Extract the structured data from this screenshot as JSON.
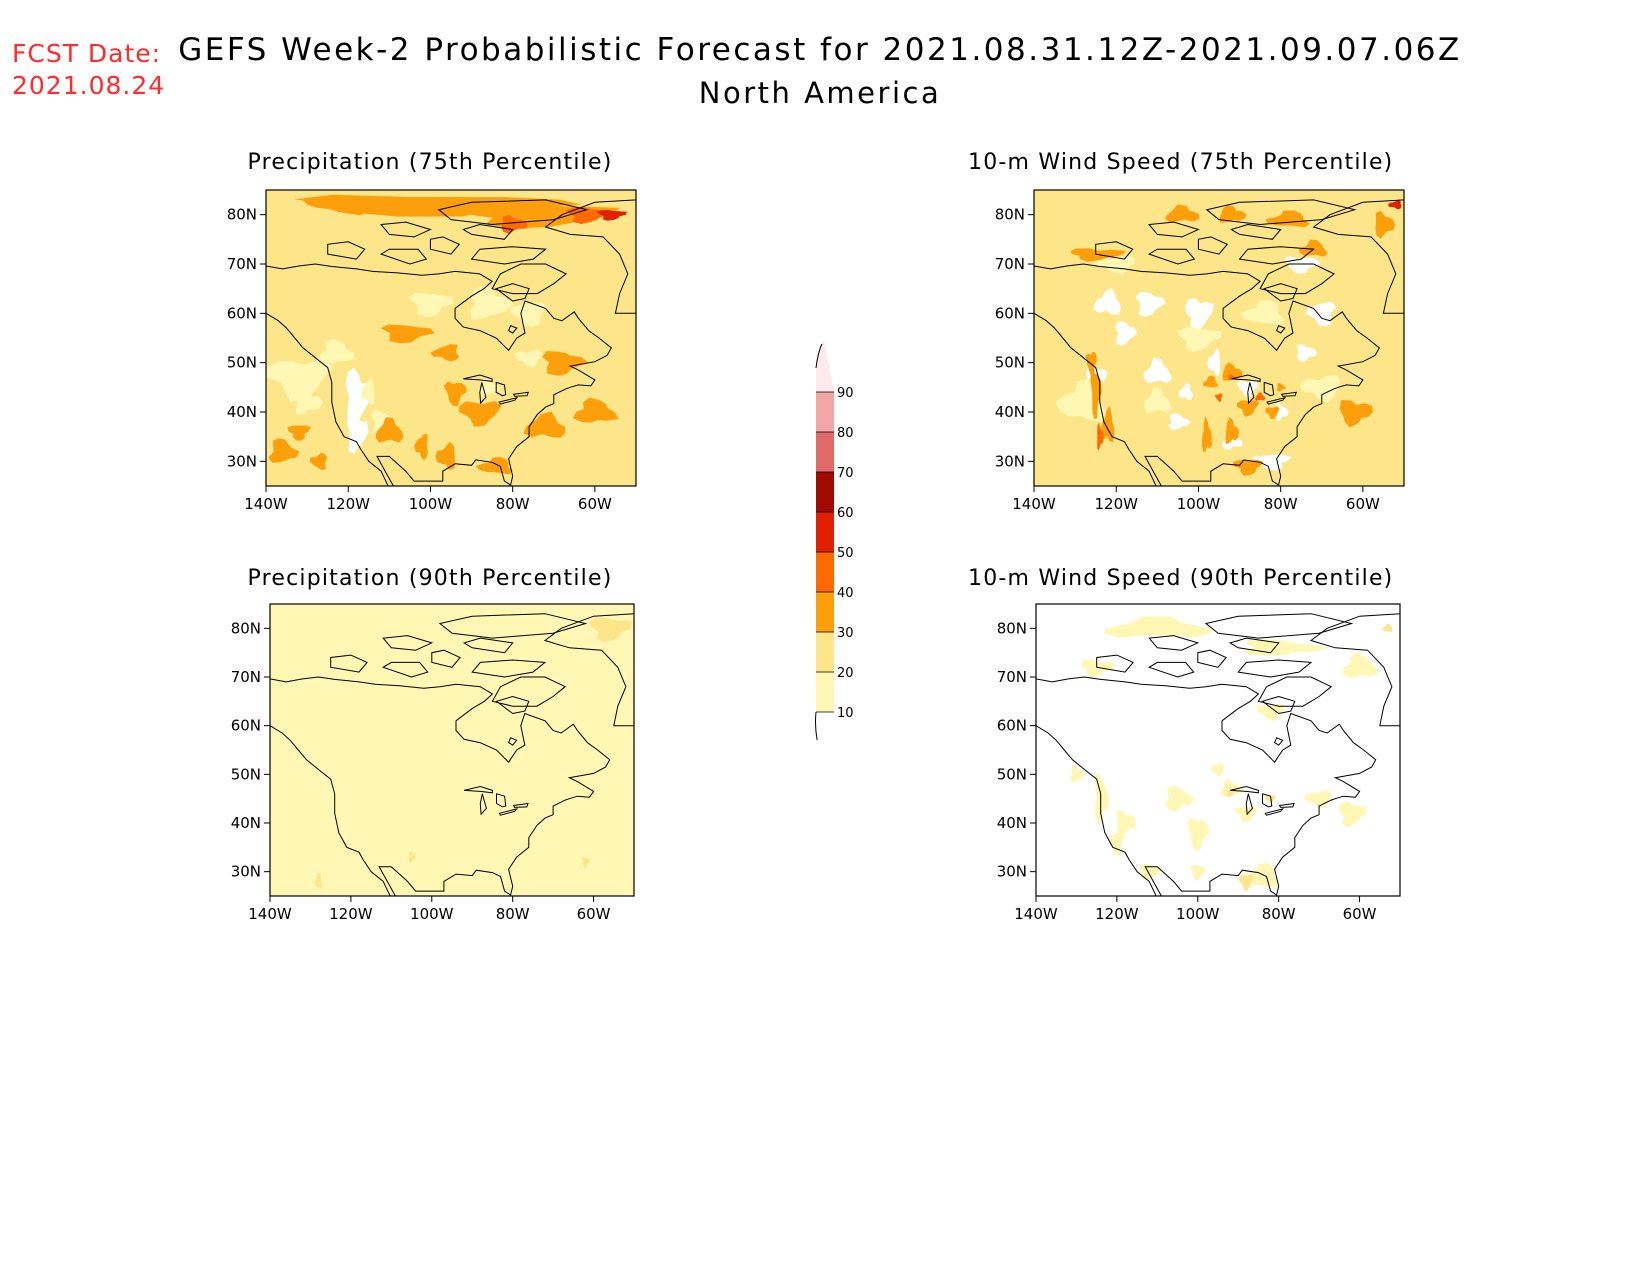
{
  "fcst": {
    "label": "FCST Date:",
    "date": "2021.08.24"
  },
  "title": {
    "line1": "GEFS Week-2 Probabilistic Forecast for 2021.08.31.12Z-2021.09.07.06Z",
    "line2": "North America"
  },
  "axes": {
    "lat_labels": [
      "30N",
      "40N",
      "50N",
      "60N",
      "70N",
      "80N"
    ],
    "lon_labels": [
      "140W",
      "120W",
      "100W",
      "80W",
      "60W"
    ]
  },
  "panels": [
    {
      "id": "precip75",
      "title": "Precipitation (75th Percentile)",
      "base_level": 20
    },
    {
      "id": "wind75",
      "title": "10-m Wind Speed (75th Percentile)",
      "base_level": 20
    },
    {
      "id": "precip90",
      "title": "Precipitation (90th Percentile)",
      "base_level": 10
    },
    {
      "id": "wind90",
      "title": "10-m Wind Speed (90th Percentile)",
      "base_level": 0
    }
  ],
  "colorbar": {
    "labels": [
      "10",
      "20",
      "30",
      "40",
      "50",
      "60",
      "70",
      "80",
      "90"
    ],
    "colors": [
      "#fff7b3",
      "#fde589",
      "#fd9f0a",
      "#ff6a00",
      "#e02000",
      "#a00a00",
      "#e06a6a",
      "#f4a6a6",
      "#ffe8ee"
    ]
  },
  "colors": {
    "land_outline": "#000000",
    "fcst_text": "#ff2a2a"
  }
}
